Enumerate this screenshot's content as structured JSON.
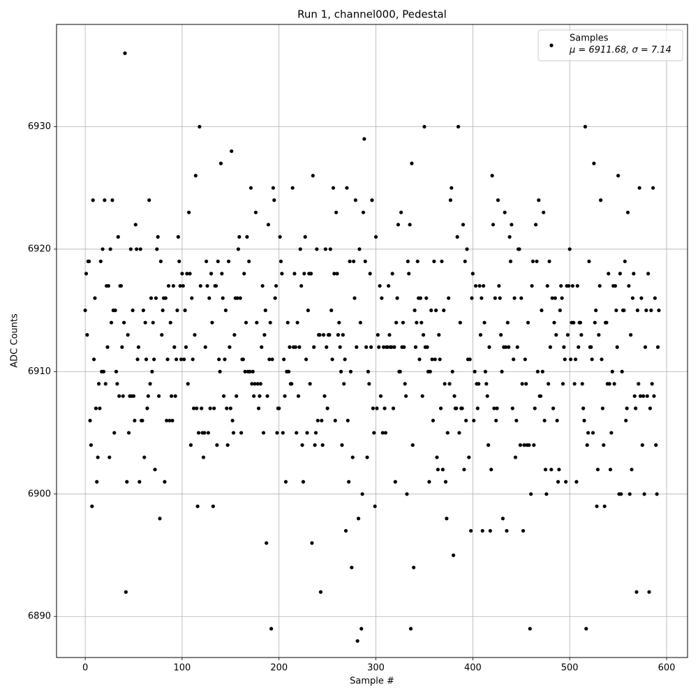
{
  "chart_data": {
    "type": "scatter",
    "title": "Run 1, channel000, Pedestal",
    "x_label": "Sample #",
    "y_label": "ADC Counts",
    "xlim": [
      -29.6,
      621.6
    ],
    "ylim": [
      6886.65,
      6938.35
    ],
    "xticks": [
      0,
      100,
      200,
      300,
      400,
      500,
      600
    ],
    "yticks": [
      6890,
      6900,
      6910,
      6920,
      6930
    ],
    "grid": true,
    "legend": "upper right",
    "legend_note": "μ = 6911.68, σ = 7.14",
    "series": [
      {
        "name": "Samples",
        "color": "#000000",
        "values": [
          6915,
          6918,
          6913,
          6919,
          6919,
          6906,
          6904,
          6899,
          6924,
          6911,
          6916,
          6907,
          6901,
          6903,
          6909,
          6907,
          6919,
          6910,
          6920,
          6910,
          6924,
          6909,
          6917,
          6912,
          6917,
          6903,
          6920,
          6914,
          6924,
          6915,
          6905,
          6915,
          6910,
          6909,
          6921,
          6908,
          6917,
          6917,
          6912,
          6908,
          6914,
          6936,
          6892,
          6901,
          6913,
          6905,
          6908,
          6920,
          6908,
          6915,
          6908,
          6906,
          6922,
          6920,
          6911,
          6912,
          6901,
          6920,
          6906,
          6906,
          6915,
          6903,
          6914,
          6911,
          6907,
          6908,
          6924,
          6909,
          6916,
          6910,
          6914,
          6911,
          6902,
          6916,
          6920,
          6921,
          6908,
          6898,
          6919,
          6913,
          6915,
          6916,
          6901,
          6916,
          6906,
          6911,
          6917,
          6906,
          6914,
          6908,
          6906,
          6917,
          6912,
          6908,
          6911,
          6915,
          6921,
          6919,
          6917,
          6911,
          6918,
          6917,
          6911,
          6915,
          6912,
          6918,
          6909,
          6923,
          6918,
          6904,
          6916,
          6911,
          6907,
          6913,
          6926,
          6907,
          6899,
          6905,
          6930,
          6917,
          6907,
          6905,
          6903,
          6905,
          6912,
          6919,
          6917,
          6905,
          6916,
          6907,
          6918,
          6914,
          6899,
          6907,
          6917,
          6917,
          6904,
          6919,
          6911,
          6910,
          6927,
          6918,
          6916,
          6908,
          6911,
          6915,
          6907,
          6904,
          6919,
          6912,
          6907,
          6928,
          6906,
          6905,
          6913,
          6916,
          6908,
          6916,
          6920,
          6921,
          6916,
          6905,
          6911,
          6911,
          6918,
          6910,
          6914,
          6921,
          6910,
          6919,
          6910,
          6925,
          6909,
          6910,
          6908,
          6909,
          6923,
          6914,
          6909,
          6907,
          6908,
          6909,
          6912,
          6917,
          6905,
          6913,
          6915,
          6896,
          6908,
          6922,
          6911,
          6914,
          6889,
          6911,
          6925,
          6924,
          6916,
          6917,
          6905,
          6907,
          6907,
          6921,
          6919,
          6918,
          6905,
          6911,
          6908,
          6901,
          6910,
          6914,
          6910,
          6912,
          6909,
          6909,
          6925,
          6912,
          6918,
          6912,
          6905,
          6914,
          6908,
          6912,
          6920,
          6917,
          6904,
          6901,
          6918,
          6921,
          6911,
          6905,
          6915,
          6918,
          6909,
          6918,
          6896,
          6926,
          6912,
          6904,
          6905,
          6920,
          6906,
          6913,
          6913,
          6892,
          6906,
          6904,
          6913,
          6908,
          6920,
          6912,
          6907,
          6913,
          6913,
          6920,
          6915,
          6911,
          6925,
          6918,
          6906,
          6923,
          6918,
          6913,
          6914,
          6912,
          6910,
          6904,
          6913,
          6909,
          6911,
          6897,
          6925,
          6906,
          6901,
          6919,
          6910,
          6894,
          6903,
          6919,
          6916,
          6924,
          6912,
          6888,
          6898,
          6920,
          6914,
          6889,
          6900,
          6923,
          6929,
          6919,
          6912,
          6903,
          6910,
          6909,
          6918,
          6912,
          6924,
          6907,
          6905,
          6899,
          6921,
          6907,
          6913,
          6912,
          6917,
          6908,
          6916,
          6905,
          6912,
          6907,
          6905,
          6912,
          6912,
          6917,
          6913,
          6912,
          6912,
          6918,
          6907,
          6912,
          6901,
          6914,
          6916,
          6922,
          6910,
          6910,
          6923,
          6912,
          6914,
          6912,
          6909,
          6908,
          6900,
          6919,
          6918,
          6922,
          6889,
          6927,
          6904,
          6894,
          6915,
          6912,
          6914,
          6919,
          6916,
          6911,
          6916,
          6914,
          6908,
          6913,
          6930,
          6912,
          6916,
          6912,
          6910,
          6901,
          6910,
          6915,
          6911,
          6906,
          6919,
          6911,
          6915,
          6903,
          6902,
          6913,
          6911,
          6907,
          6919,
          6902,
          6915,
          6909,
          6901,
          6898,
          6905,
          6916,
          6909,
          6924,
          6925,
          6910,
          6895,
          6908,
          6907,
          6907,
          6921,
          6930,
          6905,
          6914,
          6907,
          6907,
          6922,
          6902,
          6919,
          6906,
          6920,
          6911,
          6903,
          6911,
          6897,
          6916,
          6918,
          6906,
          6910,
          6917,
          6909,
          6907,
          6909,
          6917,
          6913,
          6916,
          6897,
          6917,
          6914,
          6910,
          6909,
          6908,
          6904,
          6912,
          6897,
          6902,
          6926,
          6922,
          6907,
          6916,
          6906,
          6907,
          6924,
          6917,
          6916,
          6913,
          6910,
          6898,
          6912,
          6923,
          6912,
          6897,
          6914,
          6912,
          6921,
          6919,
          6922,
          6907,
          6911,
          6916,
          6903,
          6906,
          6912,
          6920,
          6920,
          6904,
          6916,
          6909,
          6897,
          6904,
          6911,
          6909,
          6904,
          6914,
          6904,
          6889,
          6900,
          6917,
          6919,
          6904,
          6907,
          6922,
          6919,
          6910,
          6924,
          6908,
          6908,
          6915,
          6910,
          6923,
          6906,
          6902,
          6900,
          6917,
          6909,
          6919,
          6912,
          6902,
          6916,
          6907,
          6914,
          6916,
          6913,
          6906,
          6901,
          6902,
          6915,
          6917,
          6916,
          6909,
          6912,
          6911,
          6901,
          6917,
          6913,
          6917,
          6920,
          6911,
          6914,
          6917,
          6914,
          6909,
          6911,
          6901,
          6917,
          6912,
          6914,
          6914,
          6913,
          6909,
          6907,
          6906,
          6930,
          6889,
          6904,
          6905,
          6919,
          6912,
          6912,
          6911,
          6905,
          6927,
          6914,
          6915,
          6899,
          6902,
          6913,
          6917,
          6924,
          6911,
          6907,
          6904,
          6899,
          6914,
          6914,
          6909,
          6918,
          6909,
          6902,
          6905,
          6910,
          6917,
          6909,
          6917,
          6915,
          6912,
          6926,
          6900,
          6918,
          6900,
          6910,
          6915,
          6915,
          6919,
          6906,
          6907,
          6923,
          6917,
          6900,
          6913,
          6902,
          6916,
          6918,
          6908,
          6907,
          6892,
          6915,
          6909,
          6925,
          6908,
          6916,
          6904,
          6908,
          6900,
          6912,
          6915,
          6908,
          6918,
          6892,
          6907,
          6915,
          6909,
          6925,
          6908,
          6916,
          6904,
          6900,
          6912,
          6915
        ]
      }
    ]
  }
}
